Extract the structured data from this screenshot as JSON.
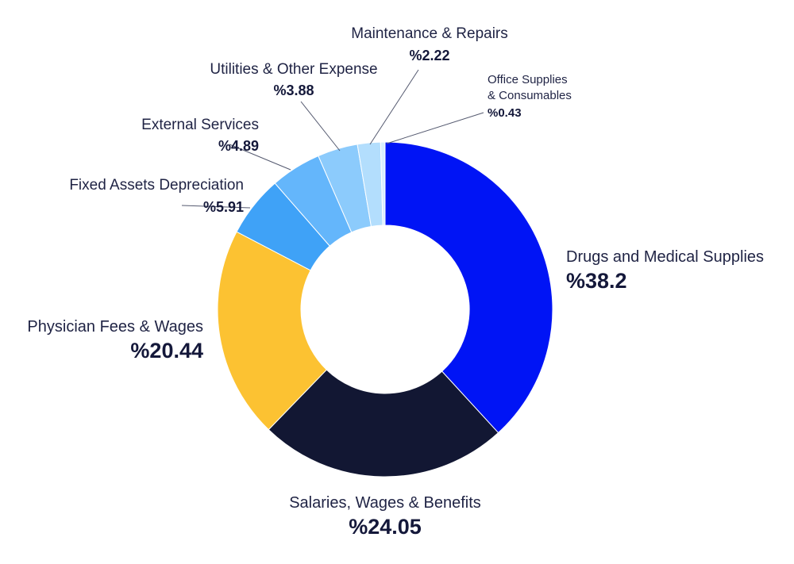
{
  "chart_data": {
    "type": "pie",
    "title": "",
    "donut": true,
    "slices": [
      {
        "label": "Drugs and Medical Supplies",
        "value": 38.2,
        "value_text": "%38.2",
        "color": "#0014f5"
      },
      {
        "label": "Salaries, Wages & Benefits",
        "value": 24.05,
        "value_text": "%24.05",
        "color": "#121733"
      },
      {
        "label": "Physician Fees & Wages",
        "value": 20.44,
        "value_text": "%20.44",
        "color": "#fcc232"
      },
      {
        "label": "Fixed Assets Depreciation",
        "value": 5.91,
        "value_text": "%5.91",
        "color": "#3fa2f7"
      },
      {
        "label": "External Services",
        "value": 4.89,
        "value_text": "%4.89",
        "color": "#64b6fb"
      },
      {
        "label": "Utilities & Other Expense",
        "value": 3.88,
        "value_text": "%3.88",
        "color": "#8ccbfc"
      },
      {
        "label": "Maintenance & Repairs",
        "value": 2.22,
        "value_text": "%2.22",
        "color": "#b3defd"
      },
      {
        "label": "Office Supplies & Consumables",
        "label_lines": [
          "Office Supplies",
          "& Consumables"
        ],
        "value": 0.43,
        "value_text": "%0.43",
        "color": "#d8eefe"
      }
    ]
  }
}
